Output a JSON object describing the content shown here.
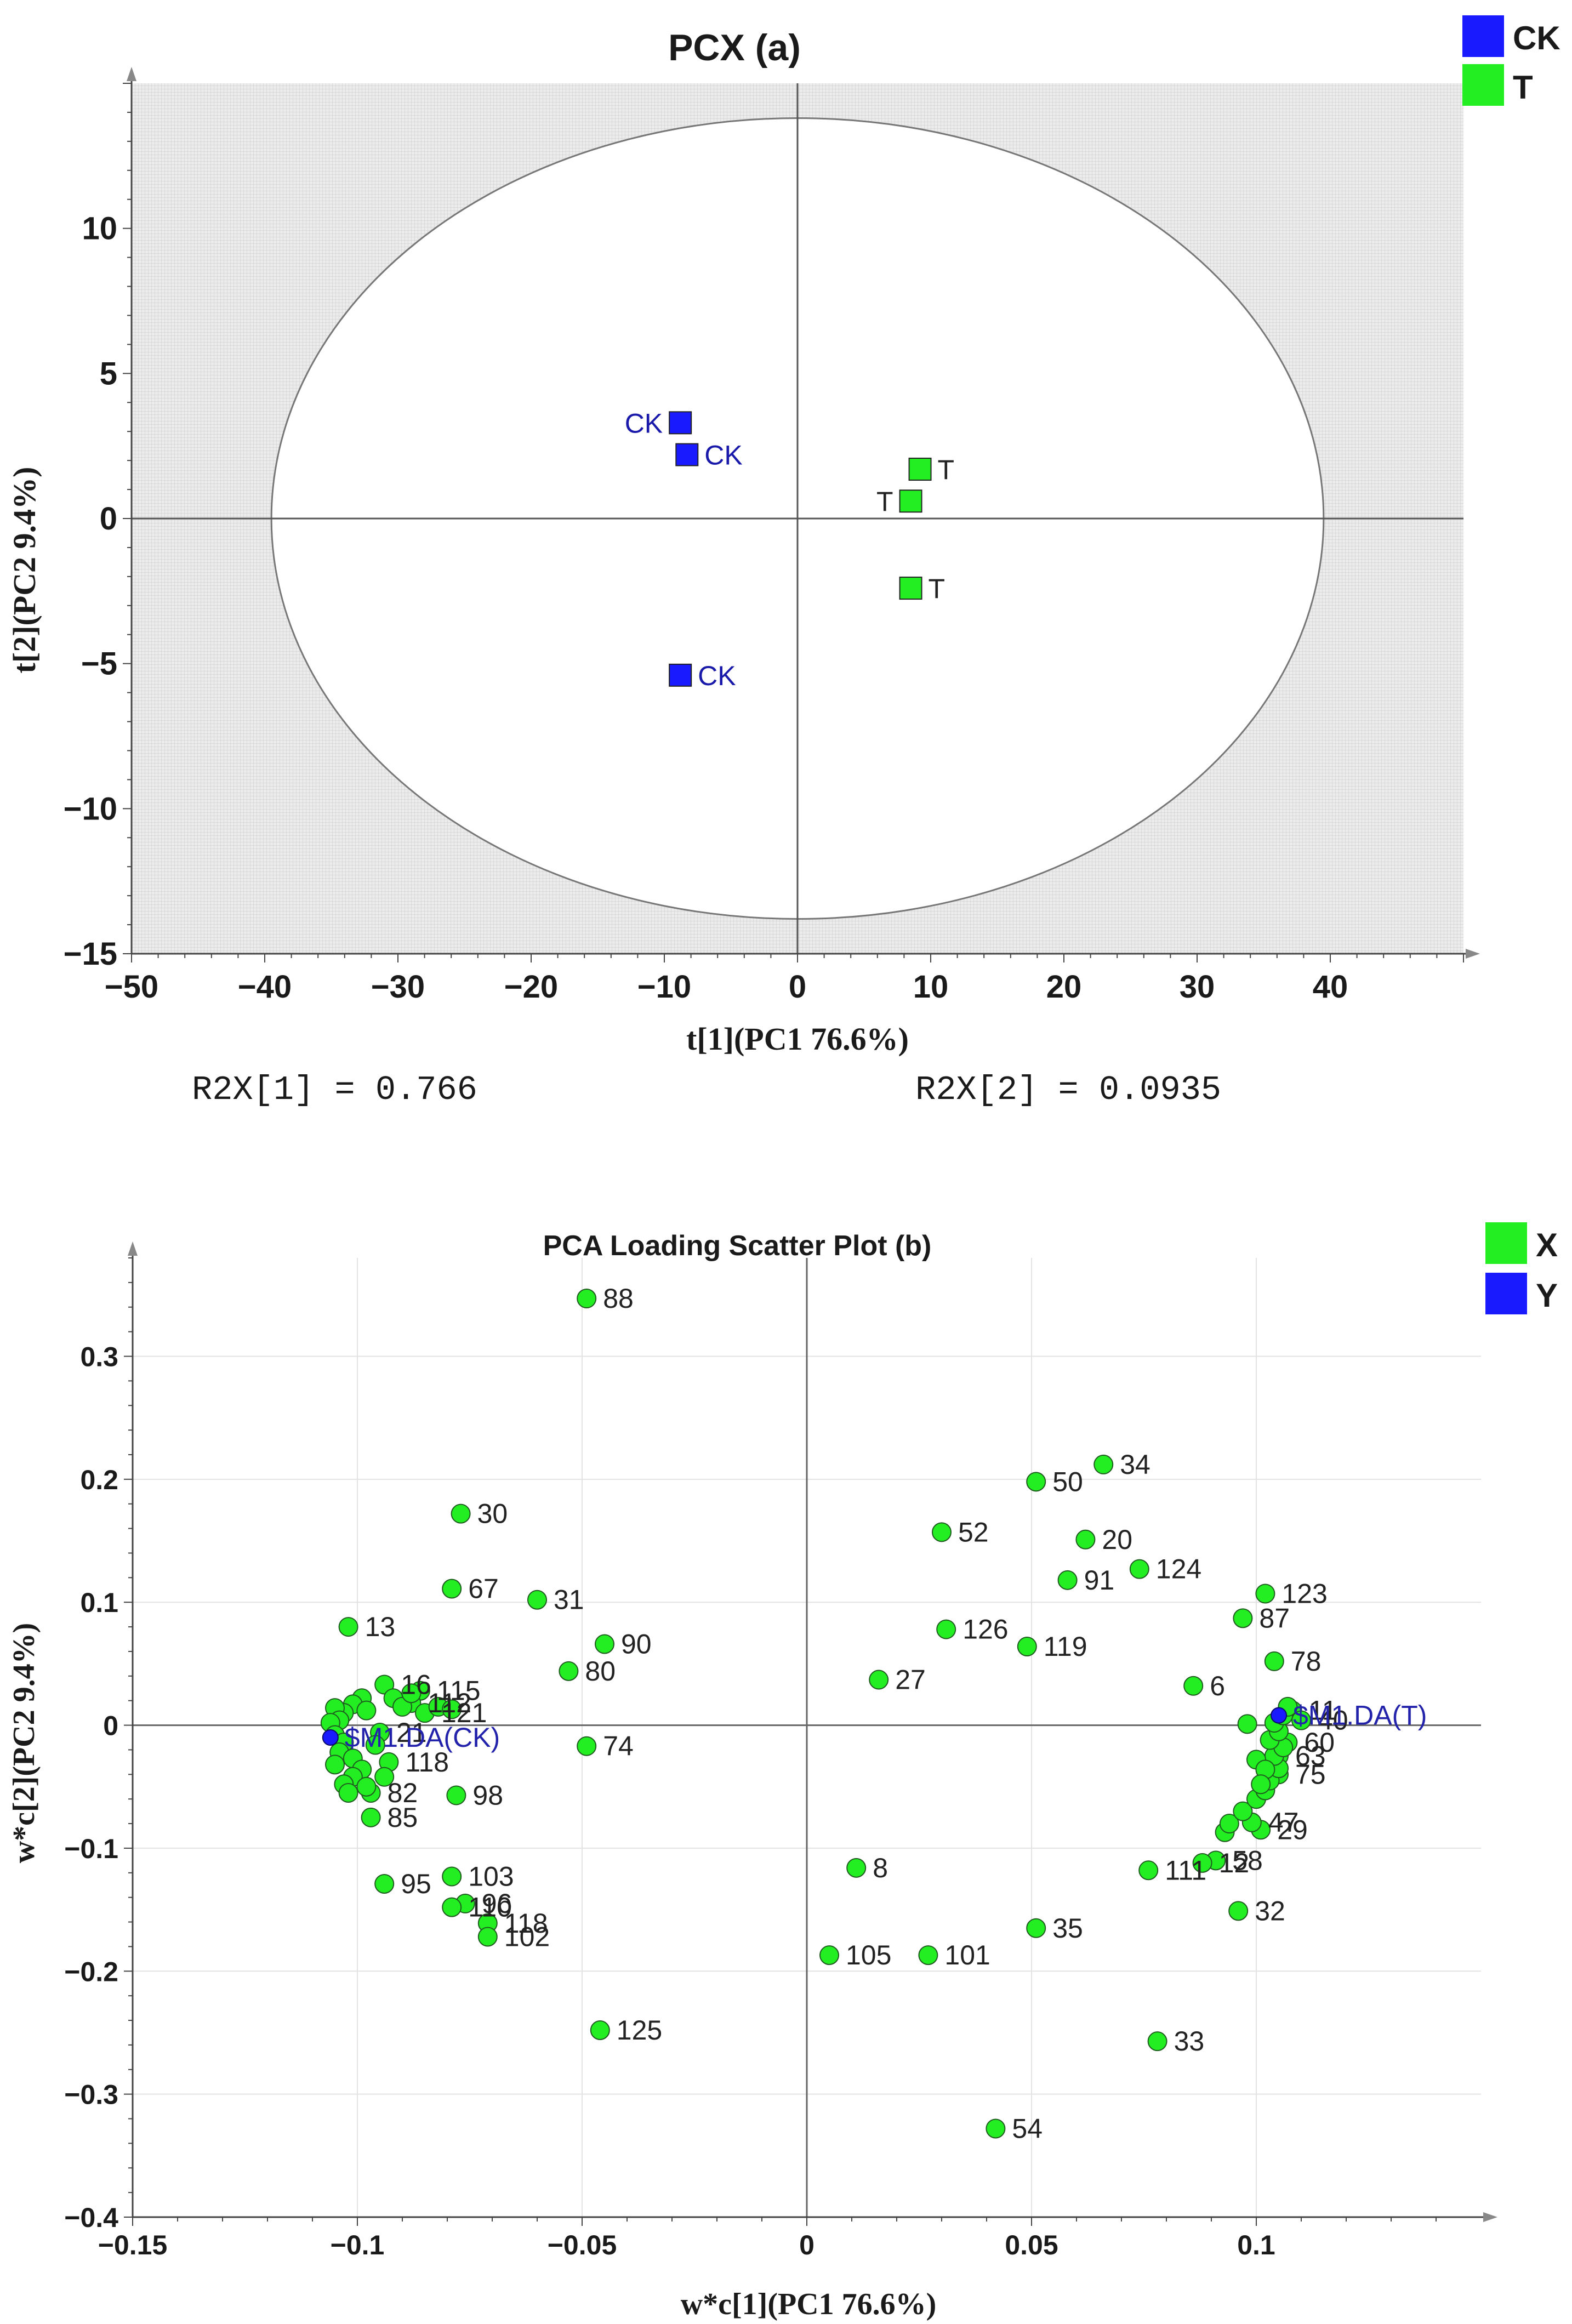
{
  "colors": {
    "ck": "#1a1aff",
    "t": "#22ee22",
    "x": "#22ee22",
    "y": "#1a1aff",
    "ck_text": "#1a1aaa",
    "loading_text": "#222222",
    "y_text": "#2222aa"
  },
  "chart_data": [
    {
      "type": "scatter",
      "title": "PCX (a)",
      "xlabel": "t[1](PC1 76.6%)",
      "ylabel": "t[2](PC2 9.4%)",
      "xlim": [
        -50,
        50
      ],
      "ylim": [
        -15,
        15
      ],
      "xticks": [
        -50,
        -40,
        -30,
        -20,
        -10,
        0,
        10,
        20,
        30,
        40
      ],
      "yticks": [
        -15,
        -10,
        -5,
        0,
        5,
        10
      ],
      "xtick_labels": [
        "−50",
        "−40",
        "−30",
        "−20",
        "−10",
        "0",
        "10",
        "20",
        "30",
        "40"
      ],
      "ytick_labels": [
        "−15",
        "−10",
        "−5",
        "0",
        "5",
        "10"
      ],
      "ellipse": {
        "rx": 39.5,
        "ry": 13.8
      },
      "legend": [
        {
          "label": "CK",
          "color": "#1a1aff"
        },
        {
          "label": "T",
          "color": "#22ee22"
        }
      ],
      "series": [
        {
          "name": "CK",
          "points": [
            {
              "x": -8.8,
              "y": 3.3,
              "label": "CK",
              "side": "left"
            },
            {
              "x": -8.3,
              "y": 2.2,
              "label": "CK",
              "side": "right"
            },
            {
              "x": -8.8,
              "y": -5.4,
              "label": "CK",
              "side": "right"
            }
          ]
        },
        {
          "name": "T",
          "points": [
            {
              "x": 9.2,
              "y": 1.7,
              "label": "T",
              "side": "right"
            },
            {
              "x": 8.5,
              "y": 0.6,
              "label": "T",
              "side": "left"
            },
            {
              "x": 8.5,
              "y": -2.4,
              "label": "T",
              "side": "right"
            }
          ]
        }
      ],
      "stats": [
        "R2X[1] = 0.766",
        "R2X[2] = 0.0935"
      ]
    },
    {
      "type": "scatter",
      "title": "PCA Loading Scatter Plot (b)",
      "xlabel": "w*c[1](PC1 76.6%)",
      "ylabel": "w*c[2](PC2 9.4%)",
      "xlim": [
        -0.15,
        0.15
      ],
      "ylim": [
        -0.4,
        0.38
      ],
      "xticks": [
        -0.15,
        -0.1,
        -0.05,
        0,
        0.05,
        0.1
      ],
      "yticks": [
        -0.4,
        -0.3,
        -0.2,
        -0.1,
        0,
        0.1,
        0.2,
        0.3
      ],
      "xtick_labels": [
        "−0.15",
        "−0.1",
        "−0.05",
        "0",
        "0.05",
        "0.1"
      ],
      "ytick_labels": [
        "−0.4",
        "−0.3",
        "−0.2",
        "−0.1",
        "0",
        "0.1",
        "0.2",
        "0.3"
      ],
      "legend": [
        {
          "label": "X",
          "color": "#22ee22"
        },
        {
          "label": "Y",
          "color": "#1a1aff"
        }
      ],
      "series": [
        {
          "name": "X",
          "points": [
            {
              "x": -0.049,
              "y": 0.347,
              "label": "88"
            },
            {
              "x": -0.077,
              "y": 0.172,
              "label": "30"
            },
            {
              "x": -0.079,
              "y": 0.111,
              "label": "67"
            },
            {
              "x": -0.06,
              "y": 0.102,
              "label": "31"
            },
            {
              "x": -0.102,
              "y": 0.08,
              "label": "13"
            },
            {
              "x": -0.045,
              "y": 0.066,
              "label": "90"
            },
            {
              "x": -0.053,
              "y": 0.044,
              "label": "80"
            },
            {
              "x": -0.049,
              "y": -0.017,
              "label": "74"
            },
            {
              "x": -0.078,
              "y": -0.057,
              "label": "98"
            },
            {
              "x": -0.097,
              "y": -0.075,
              "label": "85"
            },
            {
              "x": -0.094,
              "y": -0.129,
              "label": "95"
            },
            {
              "x": -0.079,
              "y": -0.123,
              "label": "103"
            },
            {
              "x": -0.076,
              "y": -0.145,
              "label": "96"
            },
            {
              "x": -0.079,
              "y": -0.148,
              "label": "110"
            },
            {
              "x": -0.071,
              "y": -0.161,
              "label": "118"
            },
            {
              "x": -0.071,
              "y": -0.172,
              "label": "102"
            },
            {
              "x": -0.046,
              "y": -0.248,
              "label": "125"
            },
            {
              "x": -0.094,
              "y": 0.033,
              "label": "16"
            },
            {
              "x": -0.086,
              "y": 0.028,
              "label": "115"
            },
            {
              "x": -0.088,
              "y": 0.018,
              "label": "112"
            },
            {
              "x": -0.085,
              "y": 0.01,
              "label": "121"
            },
            {
              "x": -0.095,
              "y": -0.006,
              "label": "21"
            },
            {
              "x": -0.093,
              "y": -0.03,
              "label": "118"
            },
            {
              "x": -0.097,
              "y": -0.055,
              "label": "82"
            },
            {
              "x": -0.099,
              "y": 0.022,
              "label": ""
            },
            {
              "x": -0.101,
              "y": 0.017,
              "label": ""
            },
            {
              "x": -0.103,
              "y": 0.01,
              "label": ""
            },
            {
              "x": -0.105,
              "y": 0.014,
              "label": ""
            },
            {
              "x": -0.104,
              "y": 0.004,
              "label": ""
            },
            {
              "x": -0.106,
              "y": 0.002,
              "label": ""
            },
            {
              "x": -0.105,
              "y": -0.008,
              "label": ""
            },
            {
              "x": -0.103,
              "y": -0.014,
              "label": ""
            },
            {
              "x": -0.104,
              "y": -0.022,
              "label": ""
            },
            {
              "x": -0.101,
              "y": -0.027,
              "label": ""
            },
            {
              "x": -0.105,
              "y": -0.032,
              "label": ""
            },
            {
              "x": -0.099,
              "y": -0.036,
              "label": ""
            },
            {
              "x": -0.101,
              "y": -0.042,
              "label": ""
            },
            {
              "x": -0.103,
              "y": -0.048,
              "label": ""
            },
            {
              "x": -0.098,
              "y": -0.05,
              "label": ""
            },
            {
              "x": -0.102,
              "y": -0.055,
              "label": ""
            },
            {
              "x": -0.098,
              "y": 0.012,
              "label": ""
            },
            {
              "x": -0.096,
              "y": -0.016,
              "label": ""
            },
            {
              "x": -0.092,
              "y": 0.022,
              "label": ""
            },
            {
              "x": -0.09,
              "y": 0.015,
              "label": ""
            },
            {
              "x": -0.088,
              "y": 0.026,
              "label": ""
            },
            {
              "x": -0.082,
              "y": 0.015,
              "label": ""
            },
            {
              "x": -0.079,
              "y": 0.013,
              "label": ""
            },
            {
              "x": -0.094,
              "y": -0.042,
              "label": ""
            },
            {
              "x": 0.051,
              "y": 0.198,
              "label": "50"
            },
            {
              "x": 0.066,
              "y": 0.212,
              "label": "34"
            },
            {
              "x": 0.03,
              "y": 0.157,
              "label": "52"
            },
            {
              "x": 0.062,
              "y": 0.151,
              "label": "20"
            },
            {
              "x": 0.058,
              "y": 0.118,
              "label": "91"
            },
            {
              "x": 0.074,
              "y": 0.127,
              "label": "124"
            },
            {
              "x": 0.031,
              "y": 0.078,
              "label": "126"
            },
            {
              "x": 0.049,
              "y": 0.064,
              "label": "119"
            },
            {
              "x": 0.016,
              "y": 0.037,
              "label": "27"
            },
            {
              "x": 0.102,
              "y": 0.107,
              "label": "123"
            },
            {
              "x": 0.097,
              "y": 0.087,
              "label": "87"
            },
            {
              "x": 0.104,
              "y": 0.052,
              "label": "78"
            },
            {
              "x": 0.086,
              "y": 0.032,
              "label": "6"
            },
            {
              "x": 0.011,
              "y": -0.116,
              "label": "8"
            },
            {
              "x": 0.076,
              "y": -0.118,
              "label": "111"
            },
            {
              "x": 0.096,
              "y": -0.151,
              "label": "32"
            },
            {
              "x": 0.051,
              "y": -0.165,
              "label": "35"
            },
            {
              "x": 0.005,
              "y": -0.187,
              "label": "105"
            },
            {
              "x": 0.027,
              "y": -0.187,
              "label": "101"
            },
            {
              "x": 0.078,
              "y": -0.257,
              "label": "33"
            },
            {
              "x": 0.042,
              "y": -0.328,
              "label": "54"
            },
            {
              "x": 0.091,
              "y": -0.11,
              "label": "58"
            },
            {
              "x": 0.088,
              "y": -0.112,
              "label": "12"
            },
            {
              "x": 0.101,
              "y": -0.085,
              "label": "29"
            },
            {
              "x": 0.099,
              "y": -0.079,
              "label": "47"
            },
            {
              "x": 0.105,
              "y": -0.04,
              "label": "75"
            },
            {
              "x": 0.108,
              "y": 0.012,
              "label": "11"
            },
            {
              "x": 0.11,
              "y": 0.004,
              "label": "40"
            },
            {
              "x": 0.107,
              "y": -0.014,
              "label": "60"
            },
            {
              "x": 0.105,
              "y": -0.025,
              "label": "63"
            },
            {
              "x": 0.093,
              "y": -0.087,
              "label": ""
            },
            {
              "x": 0.094,
              "y": -0.08,
              "label": ""
            },
            {
              "x": 0.097,
              "y": -0.07,
              "label": ""
            },
            {
              "x": 0.1,
              "y": -0.06,
              "label": ""
            },
            {
              "x": 0.102,
              "y": -0.053,
              "label": ""
            },
            {
              "x": 0.103,
              "y": -0.045,
              "label": ""
            },
            {
              "x": 0.105,
              "y": -0.035,
              "label": ""
            },
            {
              "x": 0.104,
              "y": -0.025,
              "label": ""
            },
            {
              "x": 0.106,
              "y": -0.018,
              "label": ""
            },
            {
              "x": 0.103,
              "y": -0.012,
              "label": ""
            },
            {
              "x": 0.105,
              "y": -0.005,
              "label": ""
            },
            {
              "x": 0.104,
              "y": 0.002,
              "label": ""
            },
            {
              "x": 0.106,
              "y": 0.008,
              "label": ""
            },
            {
              "x": 0.107,
              "y": 0.015,
              "label": ""
            },
            {
              "x": 0.1,
              "y": -0.028,
              "label": ""
            },
            {
              "x": 0.098,
              "y": 0.001,
              "label": ""
            },
            {
              "x": 0.102,
              "y": -0.036,
              "label": ""
            },
            {
              "x": 0.101,
              "y": -0.048,
              "label": ""
            }
          ]
        },
        {
          "name": "Y",
          "points": [
            {
              "x": -0.106,
              "y": -0.01,
              "label": "$M1.DA(CK)"
            },
            {
              "x": 0.105,
              "y": 0.008,
              "label": "$M1.DA(T)"
            }
          ]
        }
      ]
    }
  ]
}
